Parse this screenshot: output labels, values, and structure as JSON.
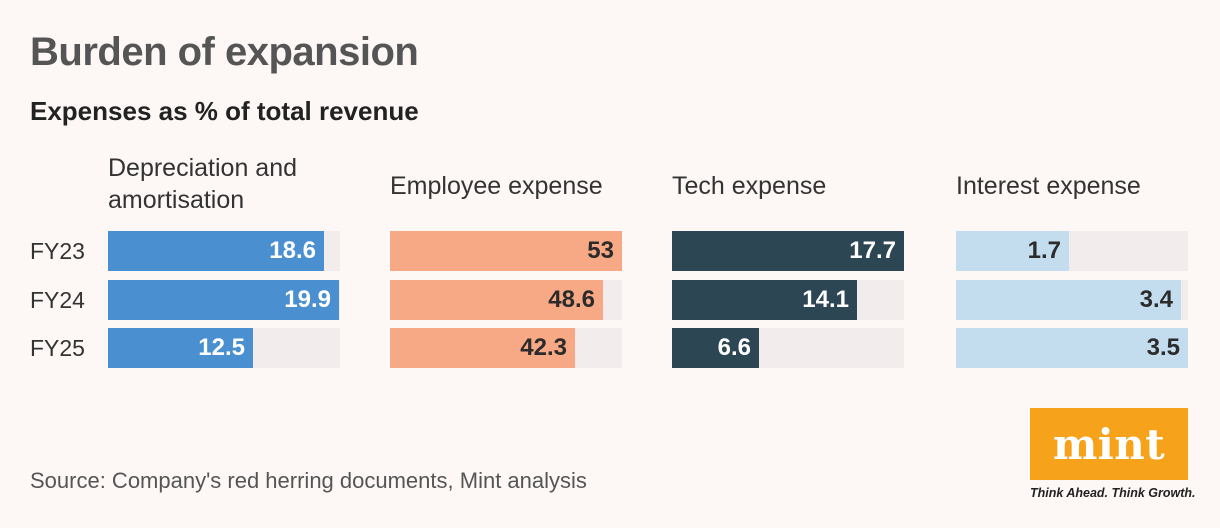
{
  "chart_data": {
    "type": "bar",
    "title": "Burden of expansion",
    "subtitle": "Expenses as % of total revenue",
    "categories": [
      "FY23",
      "FY24",
      "FY25"
    ],
    "series": [
      {
        "name": "Depreciation and amortisation",
        "values": [
          18.6,
          19.9,
          12.5
        ],
        "color": "#4a8fd0",
        "label_color": "#ffffff",
        "max": 20
      },
      {
        "name": "Employee expense",
        "values": [
          53,
          48.6,
          42.3
        ],
        "color": "#f7a885",
        "label_color": "#2b2b2b",
        "max": 53
      },
      {
        "name": "Tech expense",
        "values": [
          17.7,
          14.1,
          6.6
        ],
        "color": "#2c4654",
        "label_color": "#ffffff",
        "max": 17.7
      },
      {
        "name": "Interest expense",
        "values": [
          1.7,
          3.4,
          3.5
        ],
        "color": "#c3ddef",
        "label_color": "#2b2b2b",
        "max": 3.5
      }
    ],
    "value_labels": [
      [
        "18.6",
        "19.9",
        "12.5"
      ],
      [
        "53",
        "48.6",
        "42.3"
      ],
      [
        "17.7",
        "14.1",
        "6.6"
      ],
      [
        "1.7",
        "3.4",
        "3.5"
      ]
    ],
    "orientation": "horizontal",
    "grid": false,
    "legend": "none"
  },
  "source": "Source: Company's red herring documents, Mint analysis",
  "logo": {
    "text": "mint",
    "tagline": "Think Ahead. Think Growth.",
    "color": "#f7a21b"
  }
}
